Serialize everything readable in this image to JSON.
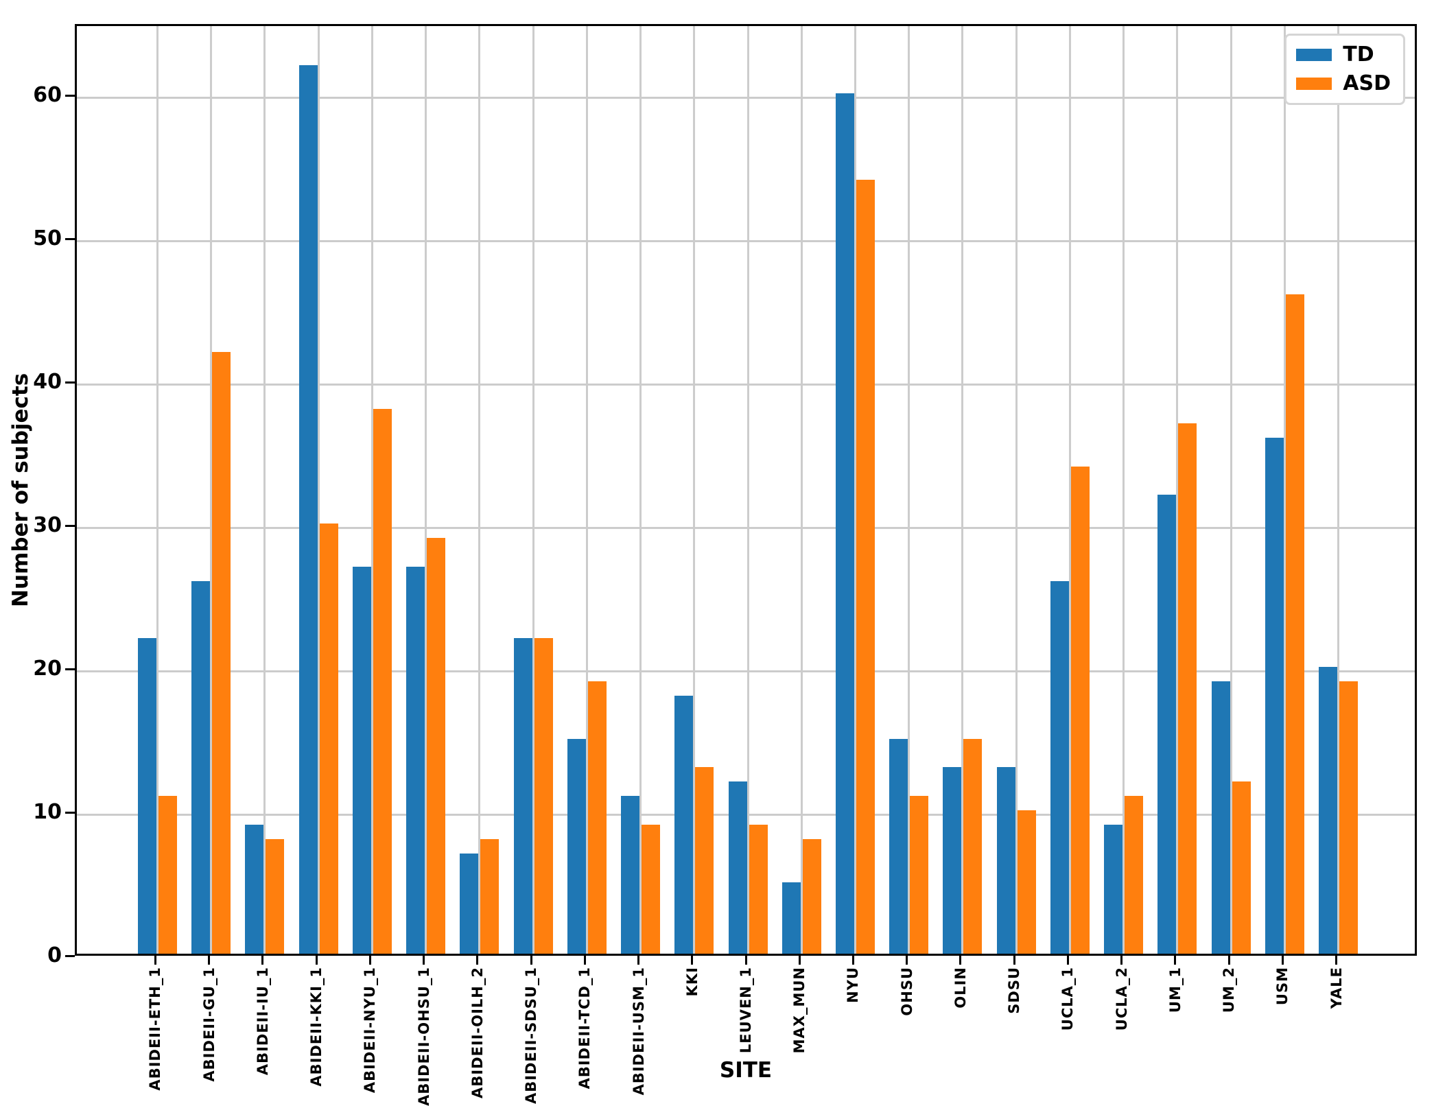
{
  "figure": {
    "ylabel": "Number of subjects",
    "xlabel": "SITE",
    "yticks": [
      "0",
      "10",
      "20",
      "30",
      "40",
      "50",
      "60"
    ],
    "legend": [
      {
        "label": "TD",
        "color": "#1f77b4"
      },
      {
        "label": "ASD",
        "color": "#ff7f0e"
      }
    ]
  },
  "chart_data": {
    "type": "bar",
    "title": "",
    "xlabel": "SITE",
    "ylabel": "Number of subjects",
    "categories": [
      "ABIDEII-ETH_1",
      "ABIDEII-GU_1",
      "ABIDEII-IU_1",
      "ABIDEII-KKI_1",
      "ABIDEII-NYU_1",
      "ABIDEII-OHSU_1",
      "ABIDEII-OILH_2",
      "ABIDEII-SDSU_1",
      "ABIDEII-TCD_1",
      "ABIDEII-USM_1",
      "KKI",
      "LEUVEN_1",
      "MAX_MUN",
      "NYU",
      "OHSU",
      "OLIN",
      "SDSU",
      "UCLA_1",
      "UCLA_2",
      "UM_1",
      "UM_2",
      "USM",
      "YALE"
    ],
    "series": [
      {
        "name": "TD",
        "color": "#1f77b4",
        "values": [
          22,
          26,
          9,
          62,
          27,
          27,
          7,
          22,
          15,
          11,
          18,
          12,
          5,
          60,
          15,
          13,
          13,
          26,
          9,
          32,
          19,
          36,
          20
        ]
      },
      {
        "name": "ASD",
        "color": "#ff7f0e",
        "values": [
          11,
          42,
          8,
          30,
          38,
          29,
          8,
          22,
          19,
          9,
          13,
          9,
          8,
          54,
          11,
          15,
          10,
          34,
          11,
          37,
          12,
          46,
          19
        ]
      }
    ],
    "ylim": [
      0,
      65
    ],
    "yticks": [
      0,
      10,
      20,
      30,
      40,
      50,
      60
    ],
    "grid": true,
    "grid_color": "#cccccc",
    "legend_position": "upper right",
    "x_tick_rotation": 90
  }
}
